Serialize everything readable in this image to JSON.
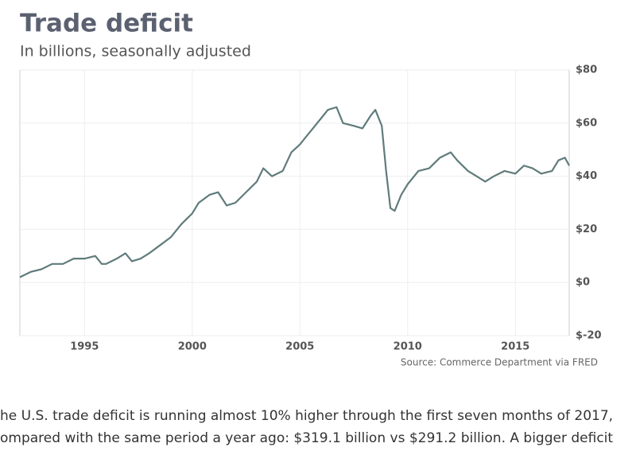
{
  "chart_data": {
    "type": "line",
    "title": "Trade deficit",
    "subtitle": "In billions, seasonally adjusted",
    "source": "Source: Commerce Department via FRED",
    "x": [
      1992.0,
      1992.5,
      1993.0,
      1993.5,
      1994.0,
      1994.5,
      1995.0,
      1995.5,
      1995.8,
      1996.0,
      1996.5,
      1996.9,
      1997.2,
      1997.6,
      1998.0,
      1998.5,
      1999.0,
      1999.5,
      2000.0,
      2000.3,
      2000.8,
      2001.2,
      2001.6,
      2002.0,
      2002.5,
      2003.0,
      2003.3,
      2003.7,
      2004.2,
      2004.6,
      2005.0,
      2005.5,
      2006.0,
      2006.3,
      2006.7,
      2007.0,
      2007.5,
      2007.9,
      2008.3,
      2008.5,
      2008.8,
      2009.0,
      2009.2,
      2009.4,
      2009.7,
      2010.0,
      2010.5,
      2011.0,
      2011.5,
      2012.0,
      2012.3,
      2012.8,
      2013.2,
      2013.6,
      2014.0,
      2014.5,
      2015.0,
      2015.4,
      2015.8,
      2016.2,
      2016.7,
      2017.0,
      2017.3,
      2017.5
    ],
    "values": [
      2,
      4,
      5,
      7,
      7,
      9,
      9,
      10,
      7,
      7,
      9,
      11,
      8,
      9,
      11,
      14,
      17,
      22,
      26,
      30,
      33,
      34,
      29,
      30,
      34,
      38,
      43,
      40,
      42,
      49,
      52,
      57,
      62,
      65,
      66,
      60,
      59,
      58,
      63,
      65,
      59,
      42,
      28,
      27,
      33,
      37,
      42,
      43,
      47,
      49,
      46,
      42,
      40,
      38,
      40,
      42,
      41,
      44,
      43,
      41,
      42,
      46,
      47,
      44
    ],
    "color": "#607b7b",
    "xlim": [
      1992,
      2017.5
    ],
    "xticks": [
      1995,
      2000,
      2005,
      2010,
      2015
    ],
    "ylim": [
      -20,
      80
    ],
    "yticks": [
      {
        "value": 80,
        "label": "$80"
      },
      {
        "value": 60,
        "label": "$60"
      },
      {
        "value": 40,
        "label": "$40"
      },
      {
        "value": 20,
        "label": "$20"
      },
      {
        "value": 0,
        "label": "$0"
      },
      {
        "value": -20,
        "label": "$-20"
      }
    ],
    "grid": true
  },
  "article": {
    "lines": [
      "he U.S. trade deficit is running almost 10% higher through the first seven months of 2017,",
      "ompared with the same period a year ago: $319.1 billion vs $291.2 billion. A bigger deficit"
    ]
  }
}
